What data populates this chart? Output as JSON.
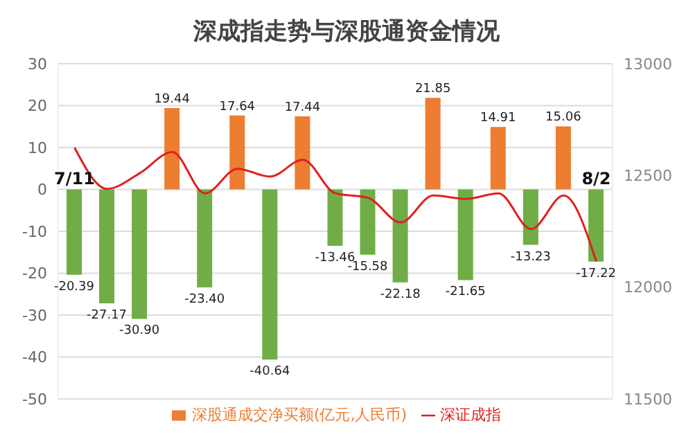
{
  "chart_data": {
    "type": "bar",
    "title": "深成指走势与深股通资金情况",
    "categories": [
      "7/11",
      null,
      null,
      null,
      null,
      null,
      null,
      null,
      null,
      null,
      null,
      null,
      null,
      null,
      null,
      null,
      "8/2"
    ],
    "series": [
      {
        "name": "深股通成交净买额(亿元,人民币)",
        "color": "#ed7d31",
        "colors": [
          "#70ad47",
          "#70ad47",
          "#70ad47",
          "#ed7d31",
          "#70ad47",
          "#ed7d31",
          "#70ad47",
          "#ed7d31",
          "#70ad47",
          "#70ad47",
          "#70ad47",
          "#ed7d31",
          "#70ad47",
          "#ed7d31",
          "#70ad47",
          "#ed7d31",
          "#70ad47"
        ],
        "values": [
          -20.39,
          -27.17,
          -30.9,
          19.44,
          -23.4,
          17.64,
          -40.64,
          17.44,
          -13.46,
          -15.58,
          -22.18,
          21.85,
          -21.65,
          14.91,
          -13.23,
          15.06,
          -17.22
        ],
        "value_labels": [
          "-20.39",
          "-27.17",
          "-30.90",
          "19.44",
          "-23.40",
          "17.64",
          "-40.64",
          "17.44",
          "-13.46",
          "-15.58",
          "-22.18",
          "21.85",
          "-21.65",
          "14.91",
          "-13.23",
          "15.06",
          "-17.22"
        ]
      },
      {
        "type": "line",
        "name": "深证成指",
        "color": "#e02020",
        "axis": "y2",
        "values": [
          12625,
          12440,
          12510,
          12605,
          12420,
          12530,
          12495,
          12570,
          12420,
          12400,
          12290,
          12410,
          12395,
          12420,
          12260,
          12410,
          12115
        ]
      }
    ],
    "ylim": [
      -50,
      30
    ],
    "yticks": [
      -50,
      -40,
      -30,
      -20,
      -10,
      0,
      10,
      20,
      30
    ],
    "y2lim": [
      11500,
      13000
    ],
    "y2ticks": [
      11500,
      12000,
      12500,
      13000
    ],
    "grid": "y",
    "legend": "bottom",
    "marker": "none",
    "line_style": "solid"
  }
}
